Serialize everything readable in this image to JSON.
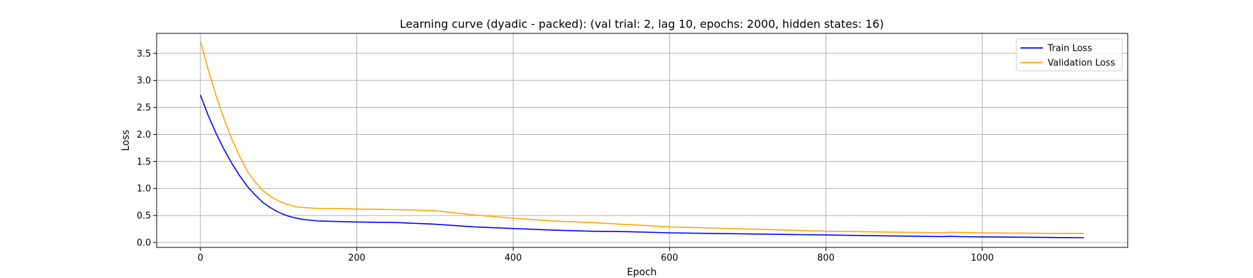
{
  "chart_data": {
    "type": "line",
    "title": "Learning curve (dyadic - packed): (val trial: 2, lag 10, epochs: 2000, hidden states: 16)",
    "xlabel": "Epoch",
    "ylabel": "Loss",
    "xlim": [
      -56,
      1186
    ],
    "ylim": [
      -0.09,
      3.87
    ],
    "xticks": [
      0,
      200,
      400,
      600,
      800,
      1000
    ],
    "yticks": [
      0.0,
      0.5,
      1.0,
      1.5,
      2.0,
      2.5,
      3.0,
      3.5
    ],
    "xtick_labels": [
      "0",
      "200",
      "400",
      "600",
      "800",
      "1000"
    ],
    "ytick_labels": [
      "0.0",
      "0.5",
      "1.0",
      "1.5",
      "2.0",
      "2.5",
      "3.0",
      "3.5"
    ],
    "grid": true,
    "legend_position": "top-right",
    "series": [
      {
        "name": "Train Loss",
        "color": "#0000ff",
        "x": [
          0,
          10,
          20,
          30,
          40,
          50,
          60,
          70,
          80,
          90,
          100,
          110,
          120,
          130,
          150,
          175,
          200,
          250,
          300,
          350,
          400,
          450,
          500,
          550,
          600,
          650,
          700,
          750,
          800,
          850,
          900,
          950,
          960,
          970,
          1000,
          1040,
          1080,
          1130
        ],
        "values": [
          2.73,
          2.35,
          2.02,
          1.73,
          1.47,
          1.24,
          1.04,
          0.88,
          0.74,
          0.64,
          0.56,
          0.5,
          0.46,
          0.43,
          0.4,
          0.39,
          0.38,
          0.37,
          0.34,
          0.29,
          0.26,
          0.23,
          0.21,
          0.2,
          0.18,
          0.17,
          0.16,
          0.15,
          0.14,
          0.13,
          0.12,
          0.11,
          0.115,
          0.11,
          0.105,
          0.1,
          0.095,
          0.09
        ]
      },
      {
        "name": "Validation Loss",
        "color": "#ffa500",
        "x": [
          0,
          10,
          20,
          30,
          40,
          50,
          60,
          70,
          80,
          90,
          100,
          110,
          120,
          130,
          150,
          175,
          200,
          250,
          300,
          350,
          400,
          450,
          500,
          550,
          600,
          650,
          700,
          750,
          800,
          850,
          900,
          950,
          960,
          970,
          1000,
          1040,
          1080,
          1130
        ],
        "values": [
          3.73,
          3.2,
          2.72,
          2.3,
          1.92,
          1.6,
          1.32,
          1.12,
          0.96,
          0.85,
          0.77,
          0.71,
          0.67,
          0.65,
          0.63,
          0.63,
          0.62,
          0.61,
          0.59,
          0.51,
          0.45,
          0.4,
          0.37,
          0.33,
          0.29,
          0.27,
          0.25,
          0.23,
          0.21,
          0.2,
          0.19,
          0.18,
          0.19,
          0.185,
          0.18,
          0.175,
          0.17,
          0.17
        ]
      }
    ]
  }
}
